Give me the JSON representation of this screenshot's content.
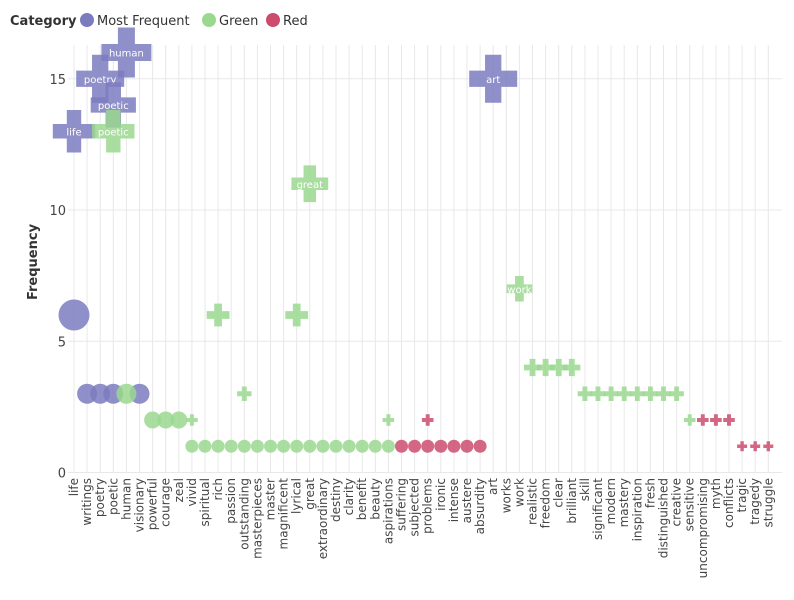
{
  "legend": {
    "title": "Category",
    "items": [
      {
        "label": "Most Frequent",
        "color": "#7b7bbf"
      },
      {
        "label": "Green",
        "color": "#9ad88f"
      },
      {
        "label": "Red",
        "color": "#cc4c6e"
      }
    ]
  },
  "chart_data": {
    "type": "scatter",
    "ylabel": "Frequency",
    "xlabel": "",
    "ylim": [
      0,
      16
    ],
    "yticks": [
      0,
      5,
      10,
      15
    ],
    "grid": true,
    "legend_position": "top-left",
    "categories": [
      "life",
      "writings",
      "poetry",
      "poetic",
      "human",
      "visionary",
      "powerful",
      "courage",
      "zeal",
      "vivid",
      "spiritual",
      "rich",
      "passion",
      "outstanding",
      "masterpieces",
      "master",
      "magnificent",
      "lyrical",
      "great",
      "extraordinary",
      "destiny",
      "clarity",
      "benefit",
      "beauty",
      "aspirations",
      "suffering",
      "subjected",
      "problems",
      "ironic",
      "intense",
      "austere",
      "absurdity",
      "art",
      "works",
      "work",
      "realistic",
      "freedom",
      "clear",
      "brilliant",
      "skill",
      "significant",
      "modern",
      "mastery",
      "inspiration",
      "fresh",
      "distinguished",
      "creative",
      "sensitive",
      "uncompromising",
      "myth",
      "conflicts",
      "tragic",
      "tragedy",
      "struggle"
    ],
    "series": [
      {
        "name": "Most Frequent",
        "shape": "circle",
        "points": [
          {
            "x": "life",
            "y": 6
          },
          {
            "x": "writings",
            "y": 3
          },
          {
            "x": "poetry",
            "y": 3
          },
          {
            "x": "poetic",
            "y": 3
          },
          {
            "x": "visionary",
            "y": 3
          }
        ]
      },
      {
        "name": "Green",
        "shape": "circle",
        "points": [
          {
            "x": "human",
            "y": 3
          },
          {
            "x": "powerful",
            "y": 2
          },
          {
            "x": "courage",
            "y": 2
          },
          {
            "x": "zeal",
            "y": 2
          },
          {
            "x": "vivid",
            "y": 1
          },
          {
            "x": "spiritual",
            "y": 1
          },
          {
            "x": "rich",
            "y": 1
          },
          {
            "x": "passion",
            "y": 1
          },
          {
            "x": "outstanding",
            "y": 1
          },
          {
            "x": "masterpieces",
            "y": 1
          },
          {
            "x": "master",
            "y": 1
          },
          {
            "x": "magnificent",
            "y": 1
          },
          {
            "x": "lyrical",
            "y": 1
          },
          {
            "x": "great",
            "y": 1
          },
          {
            "x": "extraordinary",
            "y": 1
          },
          {
            "x": "destiny",
            "y": 1
          },
          {
            "x": "clarity",
            "y": 1
          },
          {
            "x": "benefit",
            "y": 1
          },
          {
            "x": "beauty",
            "y": 1
          },
          {
            "x": "aspirations",
            "y": 1
          }
        ]
      },
      {
        "name": "Red",
        "shape": "circle",
        "points": [
          {
            "x": "suffering",
            "y": 1
          },
          {
            "x": "subjected",
            "y": 1
          },
          {
            "x": "problems",
            "y": 1
          },
          {
            "x": "ironic",
            "y": 1
          },
          {
            "x": "intense",
            "y": 1
          },
          {
            "x": "austere",
            "y": 1
          },
          {
            "x": "absurdity",
            "y": 1
          }
        ]
      },
      {
        "name": "Most Frequent",
        "shape": "cross",
        "points": [
          {
            "x": "life",
            "y": 13,
            "label": "life"
          },
          {
            "x": "poetry",
            "y": 15,
            "label": "poetry"
          },
          {
            "x": "poetic",
            "y": 14,
            "label": "poetic"
          },
          {
            "x": "human",
            "y": 16,
            "label": "human"
          },
          {
            "x": "art",
            "y": 15,
            "label": "art"
          }
        ]
      },
      {
        "name": "Green",
        "shape": "cross",
        "points": [
          {
            "x": "poetic",
            "y": 13,
            "label": "poetic"
          },
          {
            "x": "great",
            "y": 11,
            "label": "great"
          },
          {
            "x": "work",
            "y": 7,
            "label": "work"
          },
          {
            "x": "rich",
            "y": 6
          },
          {
            "x": "lyrical",
            "y": 6
          },
          {
            "x": "realistic",
            "y": 4
          },
          {
            "x": "freedom",
            "y": 4
          },
          {
            "x": "clear",
            "y": 4
          },
          {
            "x": "brilliant",
            "y": 4
          },
          {
            "x": "skill",
            "y": 3
          },
          {
            "x": "significant",
            "y": 3
          },
          {
            "x": "modern",
            "y": 3
          },
          {
            "x": "mastery",
            "y": 3
          },
          {
            "x": "inspiration",
            "y": 3
          },
          {
            "x": "fresh",
            "y": 3
          },
          {
            "x": "distinguished",
            "y": 3
          },
          {
            "x": "creative",
            "y": 3
          },
          {
            "x": "outstanding",
            "y": 3
          },
          {
            "x": "vivid",
            "y": 2
          },
          {
            "x": "aspirations",
            "y": 2
          },
          {
            "x": "sensitive",
            "y": 2
          }
        ]
      },
      {
        "name": "Red",
        "shape": "cross",
        "points": [
          {
            "x": "problems",
            "y": 2
          },
          {
            "x": "uncompromising",
            "y": 2
          },
          {
            "x": "myth",
            "y": 2
          },
          {
            "x": "conflicts",
            "y": 2
          },
          {
            "x": "tragic",
            "y": 1
          },
          {
            "x": "tragedy",
            "y": 1
          },
          {
            "x": "struggle",
            "y": 1
          }
        ]
      }
    ]
  }
}
